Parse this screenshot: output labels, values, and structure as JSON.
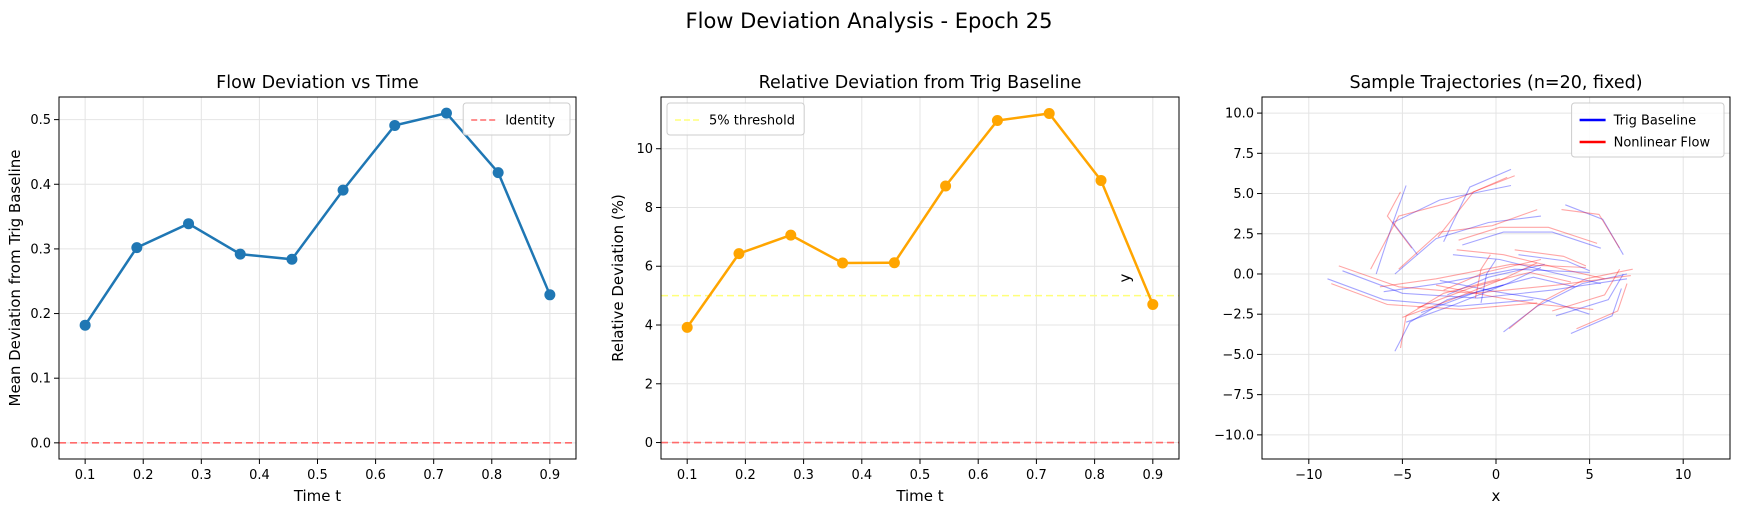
{
  "figure": {
    "suptitle": "Flow Deviation Analysis - Epoch 25"
  },
  "chart_data": [
    {
      "type": "line",
      "title": "Flow Deviation vs Time",
      "xlabel": "Time t",
      "ylabel": "Mean Deviation from Trig Baseline",
      "xlim": [
        0.055,
        0.945
      ],
      "ylim": [
        -0.025,
        0.535
      ],
      "xticks": [
        0.1,
        0.2,
        0.3,
        0.4,
        0.5,
        0.6,
        0.7,
        0.8,
        0.9
      ],
      "yticks": [
        0.0,
        0.1,
        0.2,
        0.3,
        0.4,
        0.5
      ],
      "grid": true,
      "legend": {
        "placement": "top-right",
        "entries": [
          {
            "label": "Identity",
            "color": "#ff6b6b",
            "style": "dashed"
          }
        ]
      },
      "series": [
        {
          "color": "#1f77b4",
          "style": "solid-markers",
          "x": [
            0.1,
            0.189,
            0.278,
            0.367,
            0.456,
            0.544,
            0.633,
            0.722,
            0.811,
            0.9
          ],
          "y": [
            0.182,
            0.302,
            0.339,
            0.292,
            0.284,
            0.391,
            0.491,
            0.51,
            0.418,
            0.229
          ]
        }
      ],
      "hlines": [
        {
          "y": 0,
          "color": "#ff6b6b",
          "style": "dashed"
        }
      ]
    },
    {
      "type": "line",
      "title": "Relative Deviation from Trig Baseline",
      "xlabel": "Time t",
      "ylabel": "Relative Deviation (%)",
      "xlim": [
        0.055,
        0.945
      ],
      "ylim": [
        -0.56,
        11.76
      ],
      "xticks": [
        0.1,
        0.2,
        0.3,
        0.4,
        0.5,
        0.6,
        0.7,
        0.8,
        0.9
      ],
      "yticks": [
        0,
        2,
        4,
        6,
        8,
        10
      ],
      "grid": true,
      "legend": {
        "placement": "top-left",
        "entries": [
          {
            "label": "5% threshold",
            "color": "#ffff7a",
            "style": "dashed"
          }
        ]
      },
      "series": [
        {
          "color": "#ffa500",
          "style": "solid-markers",
          "x": [
            0.1,
            0.189,
            0.278,
            0.367,
            0.456,
            0.544,
            0.633,
            0.722,
            0.811,
            0.9
          ],
          "y": [
            3.92,
            6.43,
            7.06,
            6.11,
            6.12,
            8.73,
            10.96,
            11.2,
            8.92,
            4.7
          ]
        }
      ],
      "hlines": [
        {
          "y": 5,
          "color": "#ffff7a",
          "style": "dashed"
        },
        {
          "y": 0,
          "color": "#ff6b6b",
          "style": "dashed"
        }
      ]
    },
    {
      "type": "line",
      "title": "Sample Trajectories (n=20, fixed)",
      "xlabel": "x",
      "ylabel": "y",
      "xlim": [
        -12.5,
        12.5
      ],
      "ylim": [
        -11.5,
        11.0
      ],
      "xticks": [
        -10,
        -5,
        0,
        5,
        10
      ],
      "yticks": [
        -10.0,
        -7.5,
        -5.0,
        -2.5,
        0.0,
        2.5,
        5.0,
        7.5,
        10.0
      ],
      "tick_format": {
        "x": 0,
        "y": 1
      },
      "grid": true,
      "legend": {
        "placement": "top-right",
        "entries": [
          {
            "label": "Trig Baseline",
            "color": "#0000ff",
            "style": "solid"
          },
          {
            "label": "Nonlinear Flow",
            "color": "#ff0000",
            "style": "solid"
          }
        ]
      },
      "series": [
        {
          "name": "Trig Baseline",
          "color": "#0000ff",
          "opacity": 0.35,
          "paths": [
            [
              [
                -8.2,
                0.2
              ],
              [
                -5,
                -1.2
              ],
              [
                -1,
                -1.5
              ],
              [
                3,
                -1
              ],
              [
                7,
                -0.3
              ]
            ],
            [
              [
                -9,
                -0.3
              ],
              [
                -6,
                -1.6
              ],
              [
                -2,
                -2
              ],
              [
                2,
                -1.6
              ]
            ],
            [
              [
                -4,
                -2.4
              ],
              [
                -1,
                -1.1
              ],
              [
                2,
                -0.2
              ],
              [
                4.2,
                -0.8
              ]
            ],
            [
              [
                -6,
                -1.1
              ],
              [
                -3,
                -0.6
              ],
              [
                1,
                0.3
              ],
              [
                5,
                0.1
              ]
            ],
            [
              [
                -6.4,
                0
              ],
              [
                -5.5,
                3.2
              ],
              [
                -3,
                4.6
              ],
              [
                0.8,
                5.5
              ]
            ],
            [
              [
                -5.4,
                0
              ],
              [
                -3.2,
                2.2
              ],
              [
                -0.4,
                3.2
              ],
              [
                2.4,
                3.6
              ]
            ],
            [
              [
                -2.3,
                1.2
              ],
              [
                0.2,
                0.9
              ],
              [
                3,
                0.1
              ],
              [
                5.6,
                -0.6
              ]
            ],
            [
              [
                -3,
                -0.4
              ],
              [
                0,
                -1.1
              ],
              [
                2.6,
                -1.6
              ],
              [
                5,
                -2.5
              ]
            ],
            [
              [
                -5.4,
                -4.8
              ],
              [
                -4.6,
                -3
              ],
              [
                -2.6,
                -1.6
              ],
              [
                0.4,
                -0.7
              ]
            ],
            [
              [
                0.4,
                -3.6
              ],
              [
                2.2,
                -2
              ],
              [
                4.6,
                -0.6
              ],
              [
                7,
                0
              ]
            ],
            [
              [
                -1.8,
                1.8
              ],
              [
                0.4,
                2.6
              ],
              [
                3,
                2.6
              ],
              [
                5.6,
                1.6
              ]
            ],
            [
              [
                -4.8,
                -3
              ],
              [
                -2.2,
                -1.9
              ],
              [
                0.6,
                -0.6
              ],
              [
                2.4,
                0.4
              ]
            ],
            [
              [
                -4.8,
                5.5
              ],
              [
                -5.5,
                3.2
              ],
              [
                -4.2,
                1.2
              ]
            ],
            [
              [
                0.8,
                6.5
              ],
              [
                -1.4,
                5.4
              ],
              [
                -2.8,
                2
              ]
            ],
            [
              [
                3.7,
                4.3
              ],
              [
                5.7,
                3.4
              ],
              [
                6.8,
                1.2
              ]
            ],
            [
              [
                -0.8,
                -1.8
              ],
              [
                -0.5,
                0
              ],
              [
                0,
                0.9
              ]
            ],
            [
              [
                3.2,
                -2.6
              ],
              [
                6,
                -1.6
              ],
              [
                6.8,
                0
              ]
            ],
            [
              [
                1.2,
                1.2
              ],
              [
                3.8,
                0.8
              ],
              [
                5,
                0.2
              ]
            ],
            [
              [
                4,
                -3.7
              ],
              [
                6.2,
                -2.6
              ],
              [
                6.7,
                -0.9
              ]
            ],
            [
              [
                -2.6,
                -1.3
              ],
              [
                -0.4,
                -0.2
              ],
              [
                2.6,
                0.6
              ]
            ]
          ]
        },
        {
          "name": "Nonlinear Flow",
          "color": "#ff0000",
          "opacity": 0.35,
          "paths": [
            [
              [
                -8.4,
                0.5
              ],
              [
                -5.2,
                -0.8
              ],
              [
                -1.2,
                -1.2
              ],
              [
                3.2,
                -0.7
              ],
              [
                7.2,
                -0.1
              ]
            ],
            [
              [
                -8.8,
                -0.6
              ],
              [
                -5.8,
                -1.9
              ],
              [
                -1.8,
                -2.2
              ],
              [
                2.2,
                -1.8
              ]
            ],
            [
              [
                -4.2,
                -2.1
              ],
              [
                -1.2,
                -0.8
              ],
              [
                1.8,
                0.1
              ],
              [
                4,
                -0.5
              ]
            ],
            [
              [
                -6.2,
                -0.8
              ],
              [
                -3.2,
                -0.3
              ],
              [
                0.8,
                0.6
              ],
              [
                4.8,
                0.4
              ]
            ],
            [
              [
                -6.7,
                0.3
              ],
              [
                -5.2,
                3.6
              ],
              [
                -2.6,
                4.4
              ],
              [
                0.6,
                6
              ]
            ],
            [
              [
                -5.2,
                0.3
              ],
              [
                -3,
                2.6
              ],
              [
                -0.2,
                3
              ],
              [
                2.2,
                4
              ]
            ],
            [
              [
                -2.1,
                1.5
              ],
              [
                0.4,
                1.2
              ],
              [
                3.2,
                0.4
              ],
              [
                5.8,
                -0.3
              ]
            ],
            [
              [
                -3.2,
                -0.7
              ],
              [
                -0.2,
                -1.4
              ],
              [
                2.4,
                -1.9
              ],
              [
                5.2,
                -2.2
              ]
            ],
            [
              [
                -5.1,
                -4.6
              ],
              [
                -4.8,
                -2.6
              ],
              [
                -2.8,
                -1.2
              ],
              [
                0.2,
                -0.3
              ]
            ],
            [
              [
                0.7,
                -3.4
              ],
              [
                2.5,
                -1.7
              ],
              [
                4.8,
                -0.3
              ],
              [
                7.3,
                0.3
              ]
            ],
            [
              [
                -2,
                2.1
              ],
              [
                0.2,
                2.9
              ],
              [
                2.8,
                2.9
              ],
              [
                5.4,
                1.9
              ]
            ],
            [
              [
                -5,
                -2.7
              ],
              [
                -2.4,
                -1.6
              ],
              [
                0.4,
                -0.3
              ],
              [
                2.2,
                0.7
              ]
            ],
            [
              [
                -5.1,
                5.1
              ],
              [
                -5.8,
                3.6
              ],
              [
                -4.5,
                1.6
              ]
            ],
            [
              [
                1,
                6.1
              ],
              [
                -1.2,
                5.1
              ],
              [
                -3.1,
                2.3
              ]
            ],
            [
              [
                3.5,
                4
              ],
              [
                5.5,
                3.7
              ],
              [
                6.6,
                1.6
              ]
            ],
            [
              [
                -1.1,
                -1.5
              ],
              [
                -0.8,
                0.3
              ],
              [
                -0.3,
                1.2
              ]
            ],
            [
              [
                3,
                -2.3
              ],
              [
                5.8,
                -1.3
              ],
              [
                6.6,
                0.3
              ]
            ],
            [
              [
                1,
                1.5
              ],
              [
                3.6,
                1.1
              ],
              [
                4.8,
                0.5
              ]
            ],
            [
              [
                4.3,
                -3.4
              ],
              [
                6.5,
                -2.3
              ],
              [
                7,
                -0.6
              ]
            ],
            [
              [
                -2.8,
                -1
              ],
              [
                -0.6,
                0.1
              ],
              [
                2.4,
                0.9
              ]
            ]
          ]
        }
      ]
    }
  ]
}
